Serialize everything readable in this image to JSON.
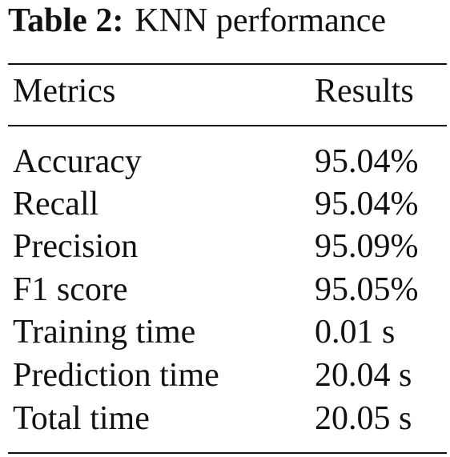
{
  "caption": {
    "label": "Table 2:",
    "title": "KNN performance"
  },
  "table": {
    "headers": [
      "Metrics",
      "Results"
    ],
    "rows": [
      [
        "Accuracy",
        "95.04%"
      ],
      [
        "Recall",
        "95.04%"
      ],
      [
        "Precision",
        "95.09%"
      ],
      [
        "F1 score",
        "95.05%"
      ],
      [
        "Training time",
        "0.01 s"
      ],
      [
        "Prediction time",
        "20.04 s"
      ],
      [
        "Total time",
        "20.05 s"
      ]
    ]
  }
}
